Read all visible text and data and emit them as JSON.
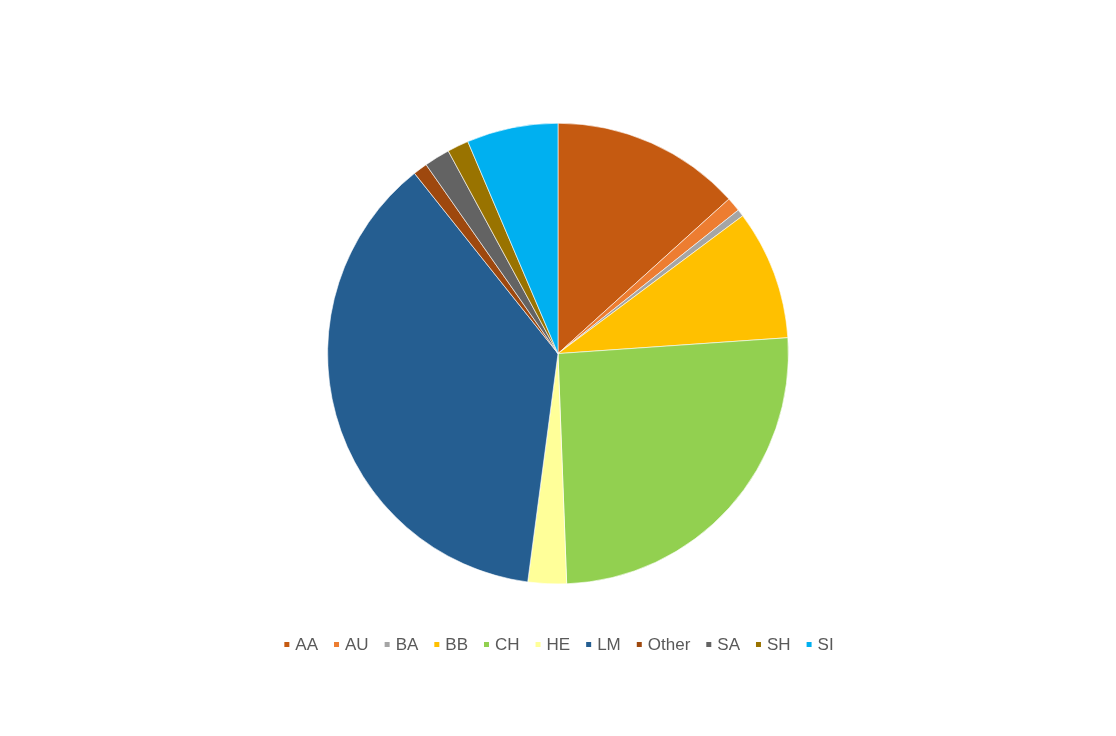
{
  "chart_data": {
    "type": "pie",
    "categories": [
      "AA",
      "AU",
      "BA",
      "BB",
      "CH",
      "HE",
      "LM",
      "Other",
      "SA",
      "SH",
      "SI"
    ],
    "values": [
      13.3,
      1,
      0.5,
      9.1,
      25.5,
      2.7,
      37.2,
      1,
      1.8,
      1.5,
      6.4
    ],
    "colors": [
      "#c55a11",
      "#ed7d31",
      "#a5a5a5",
      "#ffc000",
      "#92d050",
      "#ffff99",
      "#255e91",
      "#9e480e",
      "#636363",
      "#997300",
      "#00b0f0"
    ],
    "legend": "bottom"
  }
}
